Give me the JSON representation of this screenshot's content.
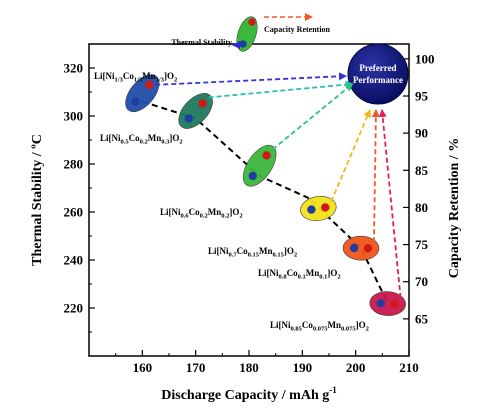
{
  "chart_data": {
    "type": "scatter",
    "xlabel": "Discharge Capacity / mAh g",
    "xlabel_sup": "-1",
    "ylabel": "Thermal Stability / ºC",
    "y2label": "Capacity Retention / %",
    "xlim": [
      150,
      210
    ],
    "ylim": [
      200,
      330
    ],
    "y2lim": [
      60,
      102
    ],
    "x_ticks": [
      "160",
      "170",
      "180",
      "190",
      "200",
      "210"
    ],
    "y_ticks": [
      "220",
      "240",
      "260",
      "280",
      "300",
      "320"
    ],
    "y2_ticks": [
      "65",
      "70",
      "75",
      "80",
      "85",
      "90",
      "95",
      "100"
    ],
    "legend": {
      "thermal_label": "Thermal Stability",
      "retention_label": "Capacity Retention"
    },
    "preferred_label": [
      "Preferred",
      "Performance"
    ],
    "materials": [
      {
        "name_parts": [
          [
            "Li[Ni",
            ""
          ],
          [
            "1/3",
            "sub"
          ],
          [
            "Co",
            ""
          ],
          [
            "1/3",
            "sub"
          ],
          [
            "Mn",
            ""
          ],
          [
            "1/3",
            "sub"
          ],
          [
            "]O",
            ""
          ],
          [
            "2",
            "sub"
          ]
        ],
        "capacity": 160,
        "thermal": 306,
        "retention": 96.5,
        "color": "#1f4fa8"
      },
      {
        "name_parts": [
          [
            "Li[Ni",
            ""
          ],
          [
            "0.5",
            "sub"
          ],
          [
            "Co",
            ""
          ],
          [
            "0.2",
            "sub"
          ],
          [
            "Mn",
            ""
          ],
          [
            "0.3",
            "sub"
          ],
          [
            "]O",
            ""
          ],
          [
            "2",
            "sub"
          ]
        ],
        "capacity": 170,
        "thermal": 299,
        "retention": 94,
        "color": "#1e7a5e"
      },
      {
        "name_parts": [
          [
            "Li[Ni",
            ""
          ],
          [
            "0.6",
            "sub"
          ],
          [
            "Co",
            ""
          ],
          [
            "0.2",
            "sub"
          ],
          [
            "Mn",
            ""
          ],
          [
            "0.2",
            "sub"
          ],
          [
            "]O",
            ""
          ],
          [
            "2",
            "sub"
          ]
        ],
        "capacity": 182,
        "thermal": 275,
        "retention": 87,
        "color": "#3bb83b"
      },
      {
        "name_parts": [
          [
            "Li[Ni",
            ""
          ],
          [
            "0.7",
            "sub"
          ],
          [
            "Co",
            ""
          ],
          [
            "0.15",
            "sub"
          ],
          [
            "Mn",
            ""
          ],
          [
            "0.15",
            "sub"
          ],
          [
            "]O",
            ""
          ],
          [
            "2",
            "sub"
          ]
        ],
        "capacity": 193,
        "thermal": 261,
        "retention": 80,
        "color": "#f2e21a"
      },
      {
        "name_parts": [
          [
            "Li[Ni",
            ""
          ],
          [
            "0.8",
            "sub"
          ],
          [
            "Co",
            ""
          ],
          [
            "0.1",
            "sub"
          ],
          [
            "Mn",
            ""
          ],
          [
            "0.1",
            "sub"
          ],
          [
            "]O",
            ""
          ],
          [
            "2",
            "sub"
          ]
        ],
        "capacity": 201,
        "thermal": 245,
        "retention": 74.5,
        "color": "#f0551a"
      },
      {
        "name_parts": [
          [
            "Li[Ni",
            ""
          ],
          [
            "0.85",
            "sub"
          ],
          [
            "Co",
            ""
          ],
          [
            "0.075",
            "sub"
          ],
          [
            "Mn",
            ""
          ],
          [
            "0.075",
            "sub"
          ],
          [
            "]O",
            ""
          ],
          [
            "2",
            "sub"
          ]
        ],
        "capacity": 206,
        "thermal": 222,
        "retention": 67,
        "color": "#c9184a"
      }
    ],
    "colors": {
      "thermal_marker": "#1f3fa0",
      "retention_marker": "#d01818",
      "preferred": "#0a0f6e",
      "legend_thermal_arrow": "#2a2ad0",
      "legend_retention_arrow": "#f05a28"
    }
  }
}
